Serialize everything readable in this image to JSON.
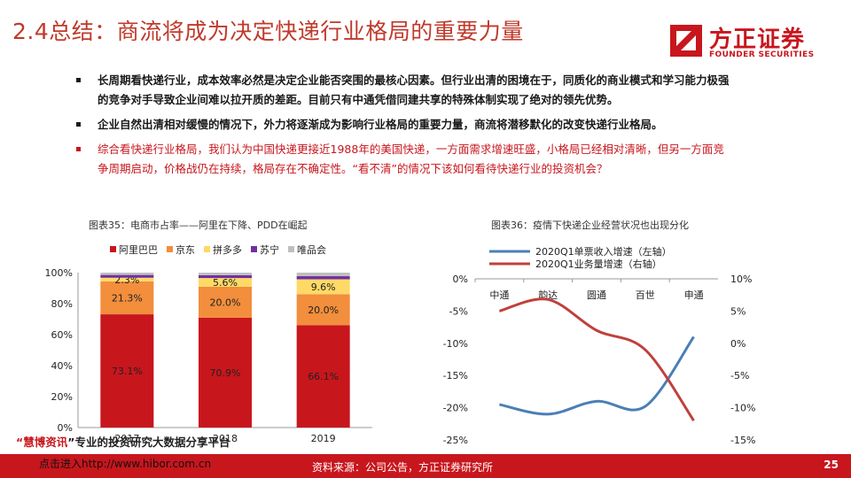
{
  "header": {
    "title": "2.4总结：商流将成为决定快递行业格局的重要力量",
    "logo_cn": "方正证券",
    "logo_en": "FOUNDER SECURITIES"
  },
  "bullets": [
    {
      "text": "长周期看快递行业，成本效率必然是决定企业能否突围的最核心因素。但行业出清的困境在于，同质化的商业模式和学习能力极强的竞争对手导致企业间难以拉开质的差距。目前只有中通凭借同建共享的特殊体制实现了绝对的领先优势。",
      "style": "black"
    },
    {
      "text": "企业自然出清相对缓慢的情况下，外力将逐渐成为影响行业格局的重要力量，商流将潜移默化的改变快递行业格局。",
      "style": "black"
    },
    {
      "text": "综合看快递行业格局，我们认为中国快递更接近1988年的美国快递，一方面需求增速旺盛，小格局已经相对清晰，但另一方面竞争周期启动，价格战仍在持续，格局存在不确定性。“看不清”的情况下该如何看待快递行业的投资机会？",
      "style": "red"
    }
  ],
  "chart_data": [
    {
      "type": "bar",
      "caption": "图表35：电商市占率——阿里在下降、PDD在崛起",
      "stacked": true,
      "categories": [
        "2017",
        "2018",
        "2019"
      ],
      "series": [
        {
          "name": "阿里巴巴",
          "color": "#c8161d",
          "values": [
            73.1,
            70.9,
            66.1
          ],
          "labels": [
            "73.1%",
            "70.9%",
            "66.1%"
          ]
        },
        {
          "name": "京东",
          "color": "#f28e3c",
          "values": [
            21.3,
            20.0,
            20.0
          ],
          "labels": [
            "21.3%",
            "20.0%",
            "20.0%"
          ]
        },
        {
          "name": "拼多多",
          "color": "#ffd966",
          "values": [
            2.3,
            5.6,
            9.6
          ],
          "labels": [
            "2.3%",
            "5.6%",
            "9.6%"
          ]
        },
        {
          "name": "苏宁",
          "color": "#7030a0",
          "values": [
            1.8,
            1.8,
            2.0
          ],
          "labels": [
            "",
            "",
            ""
          ]
        },
        {
          "name": "唯品会",
          "color": "#bfbfbf",
          "values": [
            1.5,
            1.7,
            2.3
          ],
          "labels": [
            "",
            "",
            ""
          ]
        }
      ],
      "ylim": [
        0,
        100
      ],
      "yticks": [
        "0%",
        "20%",
        "40%",
        "60%",
        "80%",
        "100%"
      ],
      "legend": "top"
    },
    {
      "type": "line",
      "caption": "图表36：疫情下快递企业经营状况也出现分化",
      "categories": [
        "中通",
        "韵达",
        "圆通",
        "百世",
        "申通"
      ],
      "series": [
        {
          "name": "2020Q1单票收入增速（左轴）",
          "axis": "left",
          "color": "#4a7fb5",
          "values": [
            -19.5,
            -21.0,
            -19.0,
            -19.8,
            -9.0
          ]
        },
        {
          "name": "2020Q1业务量增速（右轴）",
          "axis": "right",
          "color": "#c0403c",
          "values": [
            5.0,
            6.8,
            2.0,
            -1.0,
            -12.0
          ]
        }
      ],
      "ylim_left": [
        -25,
        0
      ],
      "yticks_left": [
        "0%",
        "-5%",
        "-10%",
        "-15%",
        "-20%",
        "-25%"
      ],
      "ylim_right": [
        -15,
        10
      ],
      "yticks_right": [
        "10%",
        "5%",
        "0%",
        "-5%",
        "-10%",
        "-15%"
      ],
      "legend": "top"
    }
  ],
  "watermark": {
    "line1_open": "“",
    "line1_brand": "慧博资讯",
    "line1_rest": "”专业的投资研究大数据分享平台",
    "line2": "点击进入http://www.hibor.com.cn"
  },
  "footer": {
    "source": "资料来源：公司公告，方正证券研究所",
    "page": "25"
  },
  "colors": {
    "accent": "#c8161d"
  }
}
